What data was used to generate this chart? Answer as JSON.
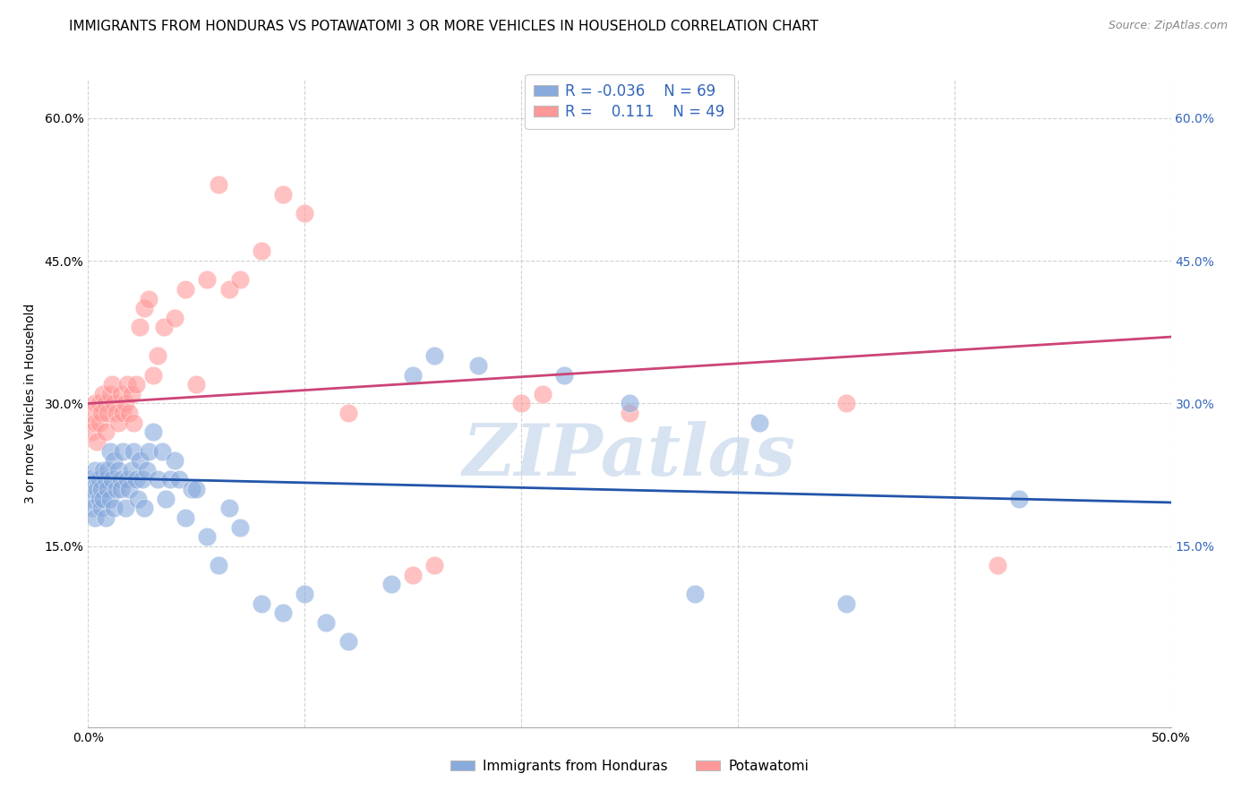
{
  "title": "IMMIGRANTS FROM HONDURAS VS POTAWATOMI 3 OR MORE VEHICLES IN HOUSEHOLD CORRELATION CHART",
  "source": "Source: ZipAtlas.com",
  "ylabel": "3 or more Vehicles in Household",
  "xlim": [
    0,
    0.5
  ],
  "ylim": [
    -0.04,
    0.64
  ],
  "xticks": [
    0.0,
    0.1,
    0.2,
    0.3,
    0.4,
    0.5
  ],
  "yticks": [
    0.15,
    0.3,
    0.45,
    0.6
  ],
  "xtick_labels_show": [
    "0.0%",
    "",
    "",
    "",
    "",
    "50.0%"
  ],
  "ytick_labels": [
    "15.0%",
    "30.0%",
    "45.0%",
    "60.0%"
  ],
  "legend_label1": "Immigrants from Honduras",
  "legend_label2": "Potawatomi",
  "blue_color": "#88AADD",
  "pink_color": "#FF9999",
  "blue_line_color": "#2255AA",
  "pink_line_color": "#CC4477",
  "watermark_color": "#C8D8EC",
  "grid_color": "#CCCCCC",
  "bg_color": "#FFFFFF",
  "title_fontsize": 11,
  "axis_label_fontsize": 10,
  "tick_fontsize": 10,
  "blue_line_y_start": 0.222,
  "blue_line_y_end": 0.196,
  "pink_line_y_start": 0.3,
  "pink_line_y_end": 0.37,
  "blue_scatter_x": [
    0.001,
    0.001,
    0.002,
    0.002,
    0.003,
    0.003,
    0.004,
    0.004,
    0.005,
    0.005,
    0.006,
    0.006,
    0.007,
    0.007,
    0.008,
    0.008,
    0.009,
    0.009,
    0.01,
    0.01,
    0.011,
    0.012,
    0.012,
    0.013,
    0.014,
    0.015,
    0.015,
    0.016,
    0.017,
    0.018,
    0.019,
    0.02,
    0.021,
    0.022,
    0.023,
    0.024,
    0.025,
    0.026,
    0.027,
    0.028,
    0.03,
    0.032,
    0.034,
    0.036,
    0.038,
    0.04,
    0.042,
    0.045,
    0.048,
    0.05,
    0.055,
    0.06,
    0.065,
    0.07,
    0.08,
    0.09,
    0.1,
    0.11,
    0.12,
    0.14,
    0.15,
    0.16,
    0.18,
    0.22,
    0.25,
    0.28,
    0.31,
    0.35,
    0.43
  ],
  "blue_scatter_y": [
    0.22,
    0.2,
    0.21,
    0.19,
    0.23,
    0.18,
    0.22,
    0.21,
    0.2,
    0.22,
    0.19,
    0.21,
    0.23,
    0.2,
    0.22,
    0.18,
    0.21,
    0.23,
    0.25,
    0.2,
    0.22,
    0.24,
    0.19,
    0.21,
    0.23,
    0.22,
    0.21,
    0.25,
    0.19,
    0.22,
    0.21,
    0.23,
    0.25,
    0.22,
    0.2,
    0.24,
    0.22,
    0.19,
    0.23,
    0.25,
    0.27,
    0.22,
    0.25,
    0.2,
    0.22,
    0.24,
    0.22,
    0.18,
    0.21,
    0.21,
    0.16,
    0.13,
    0.19,
    0.17,
    0.09,
    0.08,
    0.1,
    0.07,
    0.05,
    0.11,
    0.33,
    0.35,
    0.34,
    0.33,
    0.3,
    0.1,
    0.28,
    0.09,
    0.2
  ],
  "pink_scatter_x": [
    0.001,
    0.002,
    0.003,
    0.003,
    0.004,
    0.005,
    0.005,
    0.006,
    0.007,
    0.008,
    0.008,
    0.009,
    0.01,
    0.011,
    0.012,
    0.013,
    0.014,
    0.015,
    0.016,
    0.017,
    0.018,
    0.019,
    0.02,
    0.021,
    0.022,
    0.024,
    0.026,
    0.028,
    0.03,
    0.032,
    0.035,
    0.04,
    0.045,
    0.05,
    0.055,
    0.06,
    0.065,
    0.07,
    0.08,
    0.09,
    0.1,
    0.12,
    0.15,
    0.16,
    0.2,
    0.21,
    0.25,
    0.35,
    0.42
  ],
  "pink_scatter_y": [
    0.29,
    0.27,
    0.3,
    0.28,
    0.26,
    0.3,
    0.28,
    0.29,
    0.31,
    0.27,
    0.3,
    0.29,
    0.31,
    0.32,
    0.3,
    0.29,
    0.28,
    0.31,
    0.29,
    0.3,
    0.32,
    0.29,
    0.31,
    0.28,
    0.32,
    0.38,
    0.4,
    0.41,
    0.33,
    0.35,
    0.38,
    0.39,
    0.42,
    0.32,
    0.43,
    0.53,
    0.42,
    0.43,
    0.46,
    0.52,
    0.5,
    0.29,
    0.12,
    0.13,
    0.3,
    0.31,
    0.29,
    0.3,
    0.13
  ]
}
